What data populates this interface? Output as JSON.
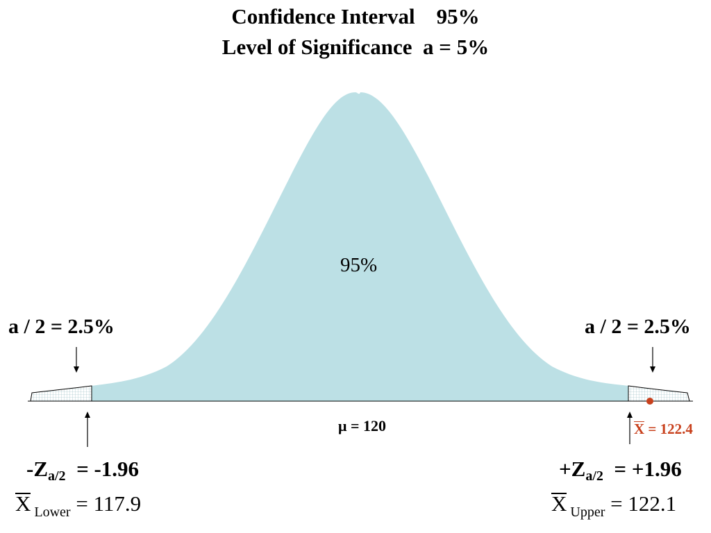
{
  "title": {
    "line1": "Confidence Interval    95%",
    "line2": "Level of Significance  a = 5%"
  },
  "curve": {
    "fill_color": "#bce0e5",
    "tail_pattern": "grid-hatch",
    "center_label": "95%"
  },
  "tails": {
    "left_label": "a / 2 = 2.5%",
    "right_label": "a / 2 = 2.5%"
  },
  "mean": {
    "label": "μ = 120"
  },
  "sample": {
    "symbol": "X",
    "value_text": " = 122.4",
    "color": "#c8401c"
  },
  "z_scores": {
    "left": {
      "sign_z": "-Z",
      "sub": "a/2",
      "value": "  = -1.96"
    },
    "right": {
      "sign_z": "+Z",
      "sub": "a/2",
      "value": "  = +1.96"
    }
  },
  "bounds": {
    "lower": {
      "symbol": "X",
      "sub": " Lower",
      "value": " = 117.9"
    },
    "upper": {
      "symbol": "X",
      "sub": " Upper",
      "value": " = 122.1"
    }
  }
}
